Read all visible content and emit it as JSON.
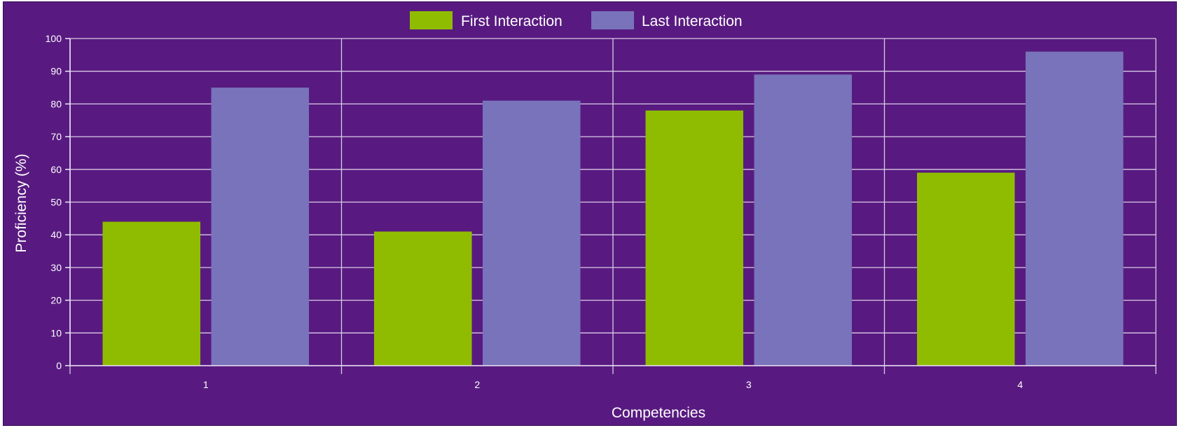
{
  "chart_data": {
    "type": "bar",
    "categories": [
      "1",
      "2",
      "3",
      "4"
    ],
    "series": [
      {
        "name": "First Interaction",
        "values": [
          44,
          41,
          78,
          59
        ],
        "color": "#8fbc00"
      },
      {
        "name": "Last Interaction",
        "values": [
          85,
          81,
          89,
          96
        ],
        "color": "#7873ba"
      }
    ],
    "xlabel": "Competencies",
    "ylabel": "Proficiency (%)",
    "ylim": [
      0,
      100
    ],
    "yticks": [
      0,
      10,
      20,
      30,
      40,
      50,
      60,
      70,
      80,
      90,
      100
    ],
    "grid": true,
    "legend_position": "top-center",
    "background_color": "#581a80",
    "grid_color": "#d9cbe6"
  }
}
